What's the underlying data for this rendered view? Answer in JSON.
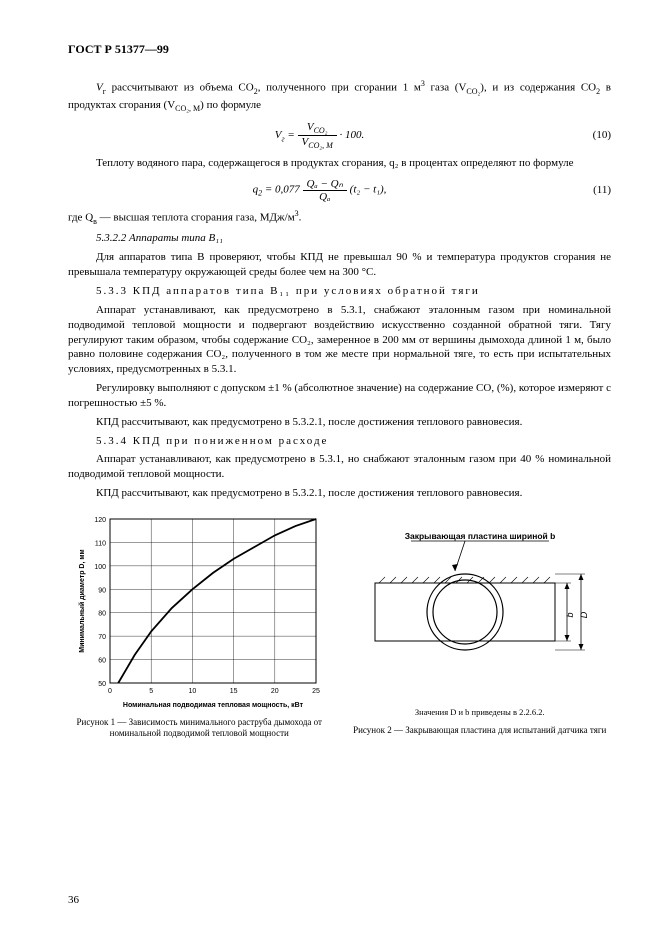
{
  "header": "ГОСТ Р 51377—99",
  "p1_a": "V",
  "p1_a_sub": "г",
  "p1_b": " рассчитывают из объема CO",
  "p1_b_sub": "2",
  "p1_c": ", полученного при сгорании 1 м",
  "p1_c_sup": "3",
  "p1_d": " газа (V",
  "p1_d_sub": "CO₂",
  "p1_e": "), и из содержания CO",
  "p1_e_sub": "2",
  "p1_f": " в продуктах сгорания (V",
  "p1_f_sub": "CO₂, M",
  "p1_g": ") по формуле",
  "eq10": {
    "lhs": "V",
    "lhs_sub": "г",
    "num": "V",
    "num_sub": "CO₂",
    "den": "V",
    "den_sub": "CO₂, M",
    "tail": " · 100.",
    "number": "(10)"
  },
  "p2": "Теплоту водяного пара, содержащегося в продуктах сгорания, q₂ в процентах определяют по формуле",
  "eq11": {
    "lhs": "q",
    "lhs_sub": "2",
    "coeff": " = 0,077 ",
    "num": "Qₐ − Qₙ",
    "den": "Qₐ",
    "tail": " (t₂ − t₁),",
    "number": "(11)"
  },
  "p3_a": "где Q",
  "p3_a_sub": "в",
  "p3_b": " — высшая теплота сгорания газа, МДж/м",
  "p3_b_sup": "3",
  "p3_c": ".",
  "p4": "5.3.2.2 Аппараты типа B₁₁",
  "p5": "Для аппаратов типа B проверяют, чтобы КПД не превышал 90 % и температура продуктов сгорания не превышала температуру окружающей среды более чем на 300 °C.",
  "p6": "5.3.3 КПД аппаратов типа B₁₁ при условиях обратной тяги",
  "p7": "Аппарат устанавливают, как предусмотрено в 5.3.1, снабжают эталонным газом при номинальной подводимой тепловой мощности и подвергают воздействию искусственно созданной обратной тяги. Тягу регулируют таким образом, чтобы содержание CO₂, замеренное в 200 мм от вершины дымохода длиной 1 м, было равно половине содержания CO₂, полученного в том же месте при нормальной тяге, то есть при испытательных условиях, предусмотренных в 5.3.1.",
  "p8": "Регулировку выполняют с допуском ±1 % (абсолютное значение) на содержание CO, (%), которое измеряют с погрешностью ±5 %.",
  "p9": "КПД рассчитывают, как предусмотрено в 5.3.2.1, после достижения теплового равновесия.",
  "p10": "5.3.4 КПД при пониженном расходе",
  "p11": "Аппарат устанавливают, как предусмотрено в 5.3.1, но снабжают эталонным газом при 40 % номинальной подводимой тепловой мощности.",
  "p12": "КПД рассчитывают, как предусмотрено в 5.3.2.1, после достижения теплового равновесия.",
  "chart": {
    "type": "line",
    "x_range": [
      0,
      25
    ],
    "x_ticks": [
      0,
      5,
      10,
      15,
      20,
      25
    ],
    "y_range": [
      50,
      120
    ],
    "y_ticks": [
      50,
      60,
      70,
      80,
      90,
      100,
      110,
      120
    ],
    "points": [
      [
        1,
        50
      ],
      [
        3,
        62
      ],
      [
        5,
        72
      ],
      [
        7.5,
        82
      ],
      [
        10,
        90
      ],
      [
        12.5,
        97
      ],
      [
        15,
        103
      ],
      [
        17.5,
        108
      ],
      [
        20,
        113
      ],
      [
        22.5,
        117
      ],
      [
        25,
        120
      ]
    ],
    "line_color": "#000000",
    "grid_color": "#000000",
    "line_width": 1.8,
    "bg": "#ffffff",
    "xlabel": "Номинальная подводимая тепловая мощность, кВт",
    "ylabel": "Минимальный диаметр D, мм",
    "font_size_pt": 7
  },
  "fig1_caption": "Рисунок 1 — Зависимость минимального раструба дымохода от номинальной подводимой тепловой мощности",
  "diagram": {
    "plate_label": "Закрывающая пластина шириной b",
    "dim_D": "D",
    "dim_b": "b",
    "note": "Значения D и b приведены в 2.2.6.2.",
    "line_color": "#000000",
    "bg": "#ffffff"
  },
  "fig2_caption": "Рисунок 2 — Закрывающая пластина для испытаний датчика тяги",
  "pagenum": "36"
}
